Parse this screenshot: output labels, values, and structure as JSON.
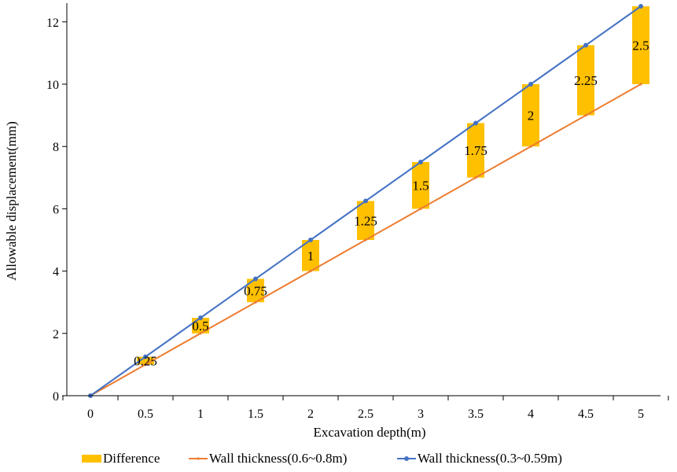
{
  "chart_data": {
    "type": "line",
    "xlabel": "Excavation depth(m)",
    "ylabel": "Allowable displacement(mm)",
    "x": [
      0,
      0.5,
      1,
      1.5,
      2,
      2.5,
      3,
      3.5,
      4,
      4.5,
      5
    ],
    "x_tick_labels": [
      "0",
      "0.5",
      "1",
      "1.5",
      "2",
      "2.5",
      "3",
      "3.5",
      "4",
      "4.5",
      "5"
    ],
    "ylim": [
      0,
      12.5
    ],
    "y_ticks": [
      0,
      2,
      4,
      6,
      8,
      10,
      12
    ],
    "y_tick_labels": [
      "0",
      "2",
      "4",
      "6",
      "8",
      "10",
      "12"
    ],
    "grid": false,
    "legend_position": "bottom",
    "series": [
      {
        "name": "Difference",
        "kind": "floating-bar",
        "color": "#ffc000",
        "lower": [
          0,
          1,
          2,
          3,
          4,
          5,
          6,
          7,
          8,
          9,
          10
        ],
        "upper": [
          0,
          1.25,
          2.5,
          3.75,
          5,
          6.25,
          7.5,
          8.75,
          10,
          11.25,
          12.5
        ],
        "values": [
          0,
          0.25,
          0.5,
          0.75,
          1,
          1.25,
          1.5,
          1.75,
          2,
          2.25,
          2.5
        ],
        "data_labels": [
          "",
          "0.25",
          "0.5",
          "0.75",
          "1",
          "1.25",
          "1.5",
          "1.75",
          "2",
          "2.25",
          "2.5"
        ]
      },
      {
        "name": "Wall thickness(0.6~0.8m)",
        "kind": "line",
        "color": "#ed7d31",
        "values": [
          0,
          1,
          2,
          3,
          4,
          5,
          6,
          7,
          8,
          9,
          10
        ]
      },
      {
        "name": "Wall thickness(0.3~0.59m)",
        "kind": "line",
        "color": "#4472c4",
        "values": [
          0,
          1.25,
          2.5,
          3.75,
          5,
          6.25,
          7.5,
          8.75,
          10,
          11.25,
          12.5
        ]
      }
    ]
  }
}
